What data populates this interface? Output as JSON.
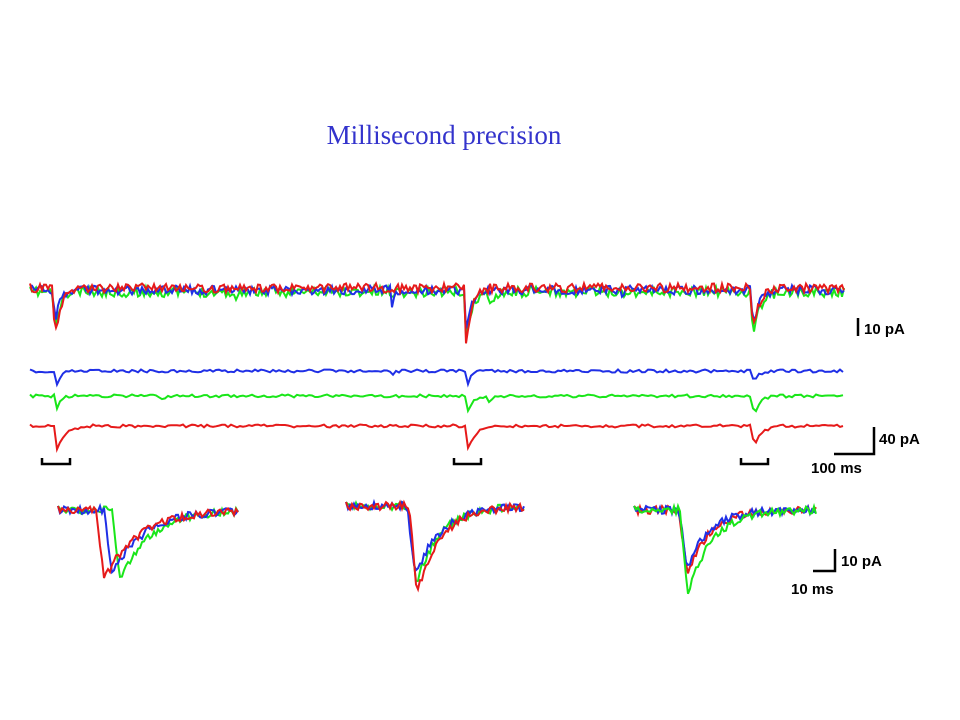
{
  "slide": {
    "title": "Millisecond precision",
    "colors": {
      "title": "#3333cc",
      "blue": "#1f2fe6",
      "green": "#19e619",
      "red": "#e61a1a"
    }
  },
  "figure": {
    "scale_bars": {
      "overlay": "10 pA",
      "stacked_amplitude": "40 pA",
      "stacked_time": "100 ms",
      "zoom_amplitude": "10 pA",
      "zoom_time": "10 ms"
    },
    "traces": [
      "blue",
      "green",
      "red"
    ],
    "event_markers_count": 3,
    "zoom_panels_count": 3
  }
}
